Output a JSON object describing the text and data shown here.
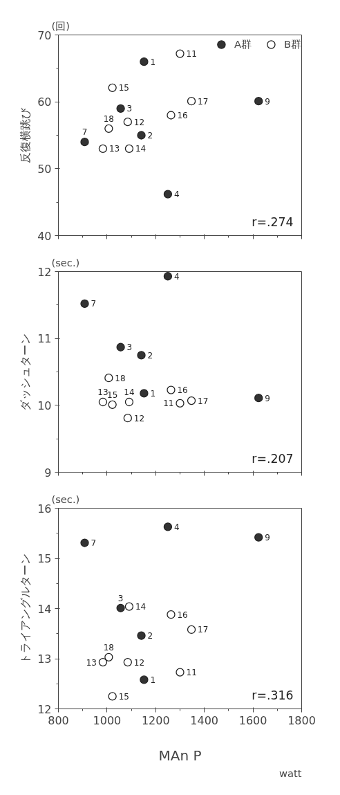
{
  "chart_data": [
    {
      "type": "scatter",
      "title": "(回)",
      "ylabel": "反復横跳び",
      "xlim": [
        800,
        1800
      ],
      "xticks": [
        800,
        1000,
        1200,
        1400,
        1600,
        1800
      ],
      "ylim": [
        40,
        70
      ],
      "yticks": [
        40,
        50,
        60,
        70
      ],
      "tick_labels": "y",
      "grid": false,
      "legend": "top right",
      "marker": "circle",
      "series": [
        {
          "name": "A群",
          "color": "#333333",
          "x": [
            1152,
            1141,
            1056,
            1250,
            908,
            1623
          ],
          "values": [
            66.0,
            55.0,
            59.0,
            46.2,
            54.0,
            60.1
          ]
        },
        {
          "name": "B群",
          "color": "#ffffff",
          "x": [
            1300,
            1085,
            983,
            1091,
            1022,
            1263,
            1347,
            1007
          ],
          "values": [
            67.2,
            57.0,
            53.0,
            53.0,
            62.1,
            58.0,
            60.1,
            56.0
          ]
        }
      ],
      "annotations": [
        {
          "text": "1",
          "x": 1152,
          "y": 66.0
        },
        {
          "text": "2",
          "x": 1141,
          "y": 55.0
        },
        {
          "text": "3",
          "x": 1056,
          "y": 59.0
        },
        {
          "text": "4",
          "x": 1250,
          "y": 46.2
        },
        {
          "text": "7",
          "x": 908,
          "y": 54.0
        },
        {
          "text": "9",
          "x": 1623,
          "y": 60.1
        },
        {
          "text": "11",
          "x": 1300,
          "y": 67.2
        },
        {
          "text": "12",
          "x": 1085,
          "y": 57.0
        },
        {
          "text": "13",
          "x": 983,
          "y": 53.0
        },
        {
          "text": "14",
          "x": 1091,
          "y": 53.0
        },
        {
          "text": "15",
          "x": 1022,
          "y": 62.1
        },
        {
          "text": "16",
          "x": 1263,
          "y": 58.0
        },
        {
          "text": "17",
          "x": 1347,
          "y": 60.1
        },
        {
          "text": "18",
          "x": 1007,
          "y": 56.0
        },
        "r=.274"
      ]
    },
    {
      "type": "scatter",
      "title": "(sec.)",
      "ylabel": "ダッシュターン",
      "xlim": [
        800,
        1800
      ],
      "xticks": [
        800,
        1000,
        1200,
        1400,
        1600,
        1800
      ],
      "ylim": [
        9,
        12
      ],
      "yticks": [
        9,
        10,
        11,
        12
      ],
      "tick_labels": "y",
      "grid": false,
      "marker": "circle",
      "series": [
        {
          "color": "#333333",
          "x": [
            1152,
            1141,
            1056,
            1250,
            908,
            1623
          ],
          "values": [
            10.18,
            10.75,
            10.87,
            11.93,
            11.52,
            10.11
          ]
        },
        {
          "color": "#ffffff",
          "x": [
            1300,
            1085,
            983,
            1091,
            1022,
            1263,
            1347,
            1007
          ],
          "values": [
            10.03,
            9.81,
            10.05,
            10.05,
            10.01,
            10.23,
            10.07,
            10.41
          ]
        }
      ],
      "annotations": [
        {
          "text": "1",
          "x": 1152,
          "y": 10.18
        },
        {
          "text": "2",
          "x": 1141,
          "y": 10.75
        },
        {
          "text": "3",
          "x": 1056,
          "y": 10.87
        },
        {
          "text": "4",
          "x": 1250,
          "y": 11.93
        },
        {
          "text": "7",
          "x": 908,
          "y": 11.52
        },
        {
          "text": "9",
          "x": 1623,
          "y": 10.11
        },
        {
          "text": "11",
          "x": 1300,
          "y": 10.03
        },
        {
          "text": "12",
          "x": 1085,
          "y": 9.81
        },
        {
          "text": "13",
          "x": 983,
          "y": 10.05
        },
        {
          "text": "14",
          "x": 1091,
          "y": 10.05
        },
        {
          "text": "15",
          "x": 1022,
          "y": 10.01
        },
        {
          "text": "16",
          "x": 1263,
          "y": 10.23
        },
        {
          "text": "17",
          "x": 1347,
          "y": 10.07
        },
        {
          "text": "18",
          "x": 1007,
          "y": 10.41
        },
        "r=.207"
      ]
    },
    {
      "type": "scatter",
      "title": "(sec.)",
      "ylabel": "トライアングルターン",
      "xlabel": "MAn P",
      "xlim": [
        800,
        1800
      ],
      "xticks": [
        800,
        1000,
        1200,
        1400,
        1600,
        1800
      ],
      "ylim": [
        12,
        16
      ],
      "yticks": [
        12,
        13,
        14,
        15,
        16
      ],
      "grid": false,
      "marker": "circle",
      "series": [
        {
          "color": "#333333",
          "x": [
            1152,
            1141,
            1056,
            1250,
            908,
            1623
          ],
          "values": [
            12.58,
            13.46,
            14.01,
            15.63,
            15.31,
            15.42
          ]
        },
        {
          "color": "#ffffff",
          "x": [
            1300,
            1085,
            983,
            1091,
            1022,
            1263,
            1347,
            1007
          ],
          "values": [
            12.73,
            12.93,
            12.93,
            14.04,
            12.25,
            13.88,
            13.58,
            13.03
          ]
        }
      ],
      "annotations": [
        {
          "text": "1",
          "x": 1152,
          "y": 12.58
        },
        {
          "text": "2",
          "x": 1141,
          "y": 13.46
        },
        {
          "text": "3",
          "x": 1056,
          "y": 14.01
        },
        {
          "text": "4",
          "x": 1250,
          "y": 15.63
        },
        {
          "text": "7",
          "x": 908,
          "y": 15.31
        },
        {
          "text": "9",
          "x": 1623,
          "y": 15.42
        },
        {
          "text": "11",
          "x": 1300,
          "y": 12.73
        },
        {
          "text": "12",
          "x": 1085,
          "y": 12.93
        },
        {
          "text": "13",
          "x": 983,
          "y": 12.93
        },
        {
          "text": "14",
          "x": 1091,
          "y": 14.04
        },
        {
          "text": "15",
          "x": 1022,
          "y": 12.25
        },
        {
          "text": "16",
          "x": 1263,
          "y": 13.88
        },
        {
          "text": "17",
          "x": 1347,
          "y": 13.58
        },
        {
          "text": "18",
          "x": 1007,
          "y": 13.03
        },
        "watt",
        "r=.316"
      ]
    }
  ]
}
